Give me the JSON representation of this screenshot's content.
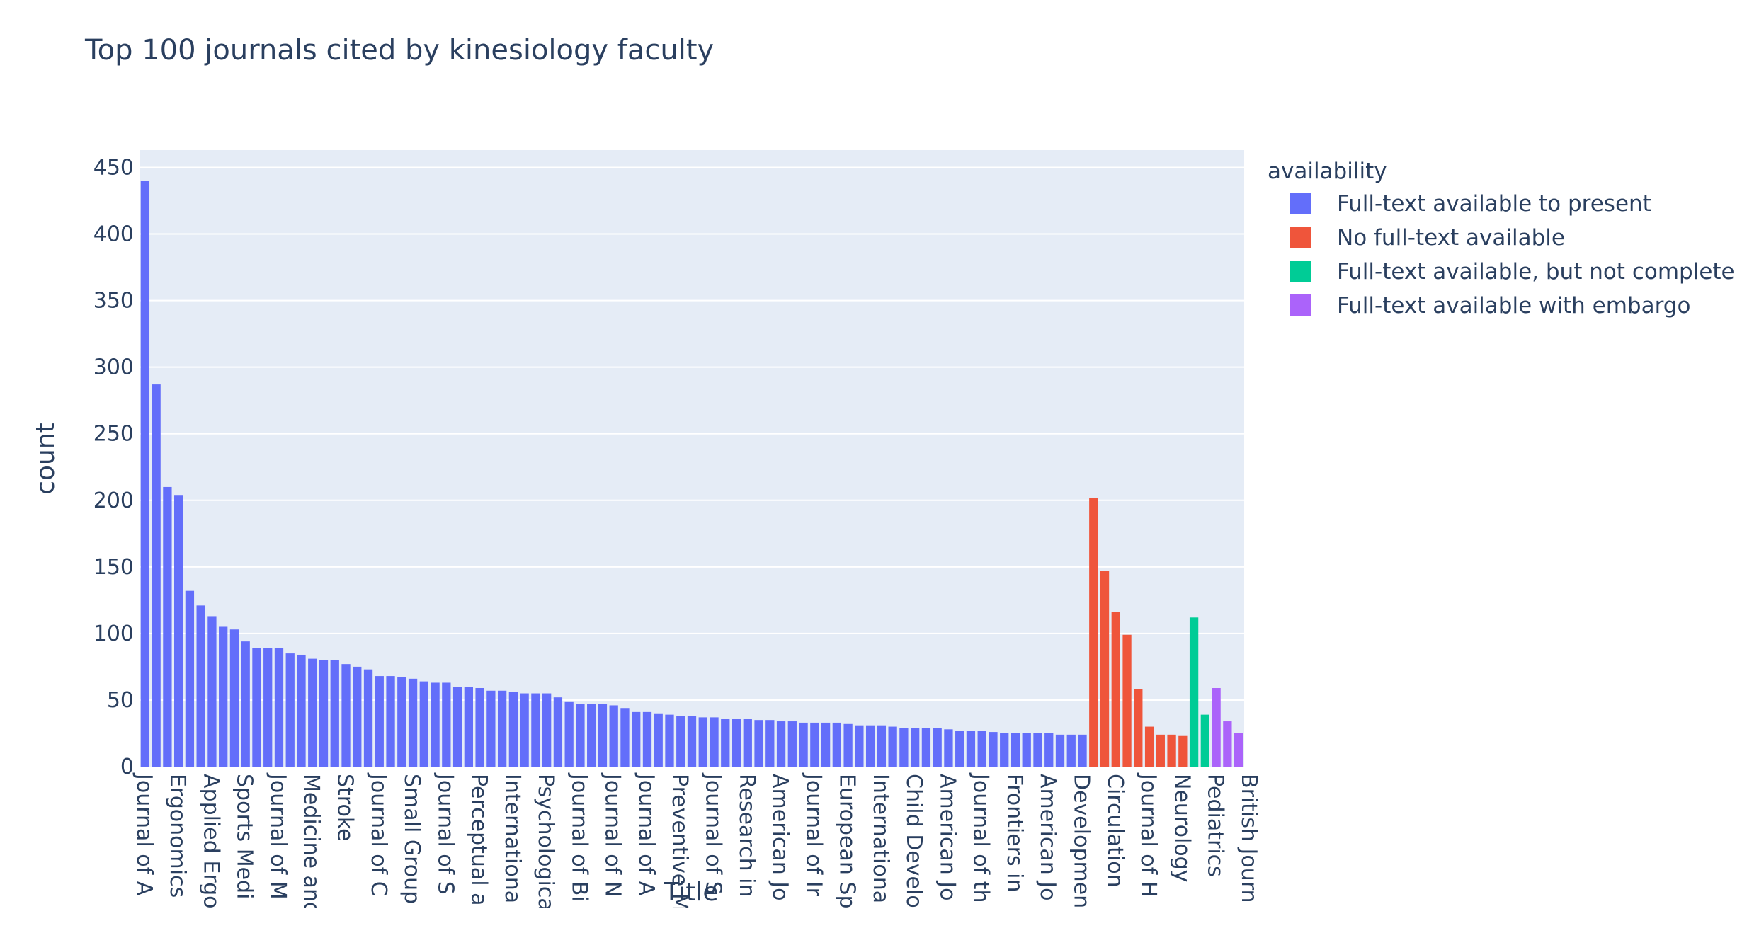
{
  "chart_data": {
    "type": "bar",
    "title": "Top 100 journals cited by kinesiology faculty",
    "xlabel": "Title",
    "ylabel": "count",
    "ylim": [
      0,
      463
    ],
    "yticks": [
      0,
      50,
      100,
      150,
      200,
      250,
      300,
      350,
      400,
      450
    ],
    "grid": true,
    "legend": {
      "title": "availability",
      "placement": "right",
      "entries": [
        {
          "name": "Full-text available to present",
          "color": "#636efa"
        },
        {
          "name": "No full-text available",
          "color": "#ef553b"
        },
        {
          "name": "Full-text available, but not complete",
          "color": "#00cc96"
        },
        {
          "name": "Full-text available with embargo",
          "color": "#ab63fa"
        }
      ]
    },
    "x_tick_labels": [
      "Journal of A",
      "Ergonomics",
      "Applied Ergo",
      "Sports Medi",
      "Journal of M",
      "Medicine and",
      "Stroke",
      "Journal of C",
      "Small Group",
      "Journal of S",
      "Perceptual a",
      "Internationa",
      "Psychologica",
      "Journal of Bi",
      "Journal of N",
      "Journal of A",
      "Preventive M",
      "Journal of S",
      "Research in",
      "American Jo",
      "Journal of Ir",
      "European Sp",
      "Internationa",
      "Child Develo",
      "American Jo",
      "Journal of th",
      "Frontiers in",
      "American Jo",
      "Developmen",
      "Circulation",
      "Journal of H",
      "Neurology",
      "Pediatrics",
      "British Journ"
    ],
    "series": [
      {
        "name": "Full-text available to present",
        "color": "#636efa",
        "values": [
          440,
          287,
          210,
          204,
          132,
          121,
          113,
          105,
          103,
          94,
          89,
          89,
          89,
          85,
          84,
          81,
          80,
          80,
          77,
          75,
          73,
          68,
          68,
          67,
          66,
          64,
          63,
          63,
          60,
          60,
          59,
          57,
          57,
          56,
          55,
          55,
          55,
          52,
          49,
          47,
          47,
          47,
          46,
          44,
          41,
          41,
          40,
          39,
          38,
          38,
          37,
          37,
          36,
          36,
          36,
          35,
          35,
          34,
          34,
          33,
          33,
          33,
          33,
          32,
          31,
          31,
          31,
          30,
          29,
          29,
          29,
          29,
          28,
          27,
          27,
          27,
          26,
          25,
          25,
          25,
          25,
          25,
          24,
          24,
          24
        ]
      },
      {
        "name": "No full-text available",
        "color": "#ef553b",
        "values": [
          202,
          147,
          116,
          99,
          58,
          30,
          24,
          24,
          23
        ]
      },
      {
        "name": "Full-text available, but not complete",
        "color": "#00cc96",
        "values": [
          112,
          39
        ]
      },
      {
        "name": "Full-text available with embargo",
        "color": "#ab63fa",
        "values": [
          59,
          34,
          25
        ]
      }
    ]
  }
}
